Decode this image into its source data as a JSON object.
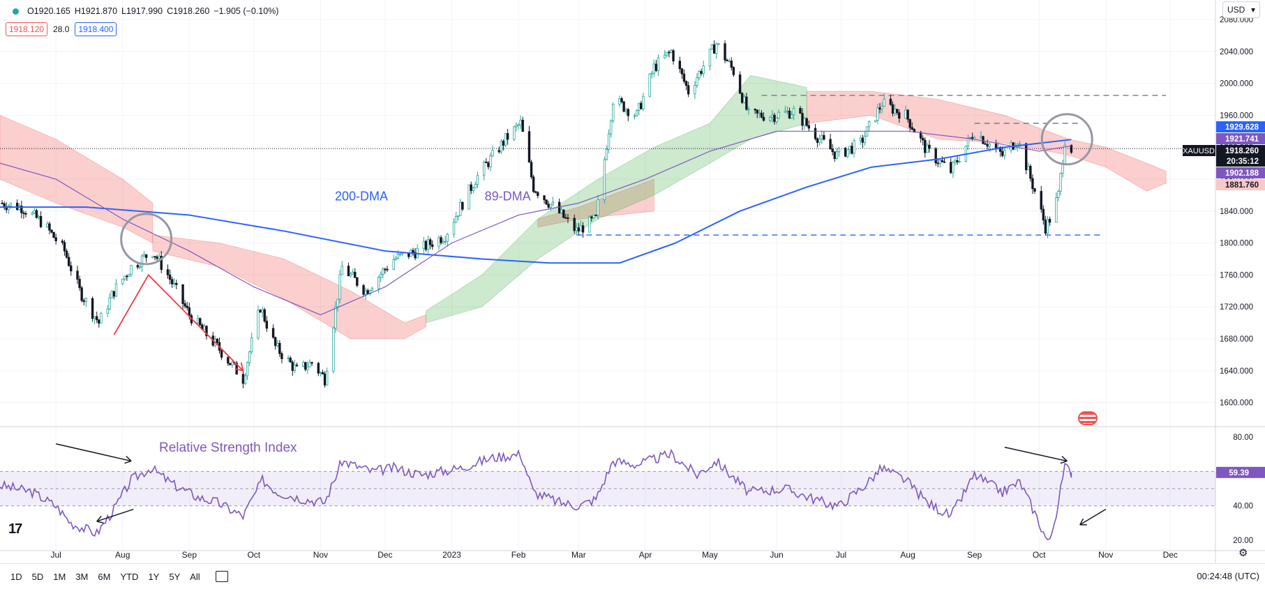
{
  "header": {
    "open": "O1920.165",
    "high": "H1921.870",
    "low": "L1917.990",
    "close": "C1918.260",
    "change": "−1.905 (−0.10%)",
    "bid": "1918.120",
    "spread": "28.0",
    "ask": "1918.400"
  },
  "currency": {
    "label": "USD"
  },
  "toolbar": {
    "timeframes": [
      "1D",
      "5D",
      "1M",
      "3M",
      "6M",
      "YTD",
      "1Y",
      "5Y",
      "All"
    ],
    "clock": "00:24:48 (UTC)"
  },
  "colors": {
    "up": "#26a69a",
    "down": "#131722",
    "dma200": "#2962ff",
    "dma89": "#7e57c2",
    "cloud_bear": "#ef5350",
    "cloud_bull": "#4caf50",
    "rsi": "#7e57c2",
    "annotation_red": "#f23645"
  },
  "chart_data": [
    {
      "type": "candlestick",
      "symbol": "XAUUSD",
      "ylim": [
        1570,
        2080
      ],
      "y_ticks": [
        1600,
        1640,
        1680,
        1720,
        1760,
        1800,
        1840,
        1880,
        1920,
        1960,
        2000,
        2040,
        2080
      ],
      "y_tick_labels": [
        "1600.000",
        "1640.000",
        "1680.000",
        "1720.000",
        "1760.000",
        "1800.000",
        "1840.000",
        "1880.000",
        "1920.000",
        "1960.000",
        "2000.000",
        "2040.000",
        "2080.000"
      ],
      "x_ticks": [
        {
          "label": "Jul",
          "date": "2022-07-01"
        },
        {
          "label": "Aug",
          "date": "2022-08-01"
        },
        {
          "label": "Sep",
          "date": "2022-09-01"
        },
        {
          "label": "Oct",
          "date": "2022-10-01"
        },
        {
          "label": "Nov",
          "date": "2022-11-01"
        },
        {
          "label": "Dec",
          "date": "2022-12-01"
        },
        {
          "label": "2023",
          "date": "2023-01-01"
        },
        {
          "label": "Feb",
          "date": "2023-02-01"
        },
        {
          "label": "Mar",
          "date": "2023-03-01"
        },
        {
          "label": "Apr",
          "date": "2023-04-01"
        },
        {
          "label": "May",
          "date": "2023-05-01"
        },
        {
          "label": "Jun",
          "date": "2023-06-01"
        },
        {
          "label": "Jul",
          "date": "2023-07-01"
        },
        {
          "label": "Aug",
          "date": "2023-08-01"
        },
        {
          "label": "Sep",
          "date": "2023-09-01"
        },
        {
          "label": "Oct",
          "date": "2023-10-01"
        },
        {
          "label": "Nov",
          "date": "2023-11-01"
        },
        {
          "label": "Dec",
          "date": "2023-12-01"
        }
      ],
      "x_range": [
        "2022-06-05",
        "2023-12-22"
      ],
      "price_path": [
        [
          "2022-06-05",
          1850
        ],
        [
          "2022-06-15",
          1845
        ],
        [
          "2022-06-25",
          1825
        ],
        [
          "2022-07-05",
          1790
        ],
        [
          "2022-07-12",
          1740
        ],
        [
          "2022-07-21",
          1700
        ],
        [
          "2022-07-28",
          1740
        ],
        [
          "2022-08-05",
          1770
        ],
        [
          "2022-08-15",
          1790
        ],
        [
          "2022-08-22",
          1760
        ],
        [
          "2022-09-01",
          1710
        ],
        [
          "2022-09-14",
          1670
        ],
        [
          "2022-09-26",
          1630
        ],
        [
          "2022-10-04",
          1720
        ],
        [
          "2022-10-11",
          1670
        ],
        [
          "2022-10-21",
          1640
        ],
        [
          "2022-10-28",
          1650
        ],
        [
          "2022-11-03",
          1630
        ],
        [
          "2022-11-11",
          1770
        ],
        [
          "2022-11-22",
          1740
        ],
        [
          "2022-12-05",
          1780
        ],
        [
          "2022-12-16",
          1790
        ],
        [
          "2022-12-29",
          1810
        ],
        [
          "2023-01-12",
          1880
        ],
        [
          "2023-01-26",
          1930
        ],
        [
          "2023-02-02",
          1950
        ],
        [
          "2023-02-08",
          1870
        ],
        [
          "2023-02-21",
          1835
        ],
        [
          "2023-02-28",
          1815
        ],
        [
          "2023-03-09",
          1830
        ],
        [
          "2023-03-17",
          1980
        ],
        [
          "2023-03-28",
          1960
        ],
        [
          "2023-04-05",
          2020
        ],
        [
          "2023-04-13",
          2040
        ],
        [
          "2023-04-21",
          1990
        ],
        [
          "2023-05-04",
          2050
        ],
        [
          "2023-05-12",
          2015
        ],
        [
          "2023-05-19",
          1960
        ],
        [
          "2023-05-31",
          1960
        ],
        [
          "2023-06-09",
          1965
        ],
        [
          "2023-06-23",
          1925
        ],
        [
          "2023-06-29",
          1910
        ],
        [
          "2023-07-10",
          1925
        ],
        [
          "2023-07-20",
          1975
        ],
        [
          "2023-07-31",
          1960
        ],
        [
          "2023-08-10",
          1915
        ],
        [
          "2023-08-21",
          1890
        ],
        [
          "2023-09-01",
          1940
        ],
        [
          "2023-09-14",
          1910
        ],
        [
          "2023-09-21",
          1930
        ],
        [
          "2023-09-29",
          1865
        ],
        [
          "2023-10-04",
          1820
        ],
        [
          "2023-10-06",
          1830
        ],
        [
          "2023-10-10",
          1860
        ],
        [
          "2023-10-13",
          1930
        ],
        [
          "2023-10-16",
          1918
        ]
      ],
      "dma200": [
        [
          "2022-06-05",
          1845
        ],
        [
          "2022-07-15",
          1845
        ],
        [
          "2022-09-01",
          1835
        ],
        [
          "2022-10-15",
          1815
        ],
        [
          "2022-12-01",
          1790
        ],
        [
          "2023-01-15",
          1780
        ],
        [
          "2023-02-15",
          1775
        ],
        [
          "2023-03-20",
          1775
        ],
        [
          "2023-04-15",
          1800
        ],
        [
          "2023-05-15",
          1840
        ],
        [
          "2023-06-15",
          1870
        ],
        [
          "2023-07-15",
          1895
        ],
        [
          "2023-08-15",
          1905
        ],
        [
          "2023-09-15",
          1920
        ],
        [
          "2023-10-16",
          1929.628
        ]
      ],
      "dma89": [
        [
          "2022-06-05",
          1900
        ],
        [
          "2022-07-01",
          1880
        ],
        [
          "2022-08-01",
          1830
        ],
        [
          "2022-09-01",
          1790
        ],
        [
          "2022-10-01",
          1745
        ],
        [
          "2022-11-01",
          1710
        ],
        [
          "2022-12-01",
          1745
        ],
        [
          "2023-01-01",
          1800
        ],
        [
          "2023-02-01",
          1835
        ],
        [
          "2023-03-01",
          1850
        ],
        [
          "2023-04-01",
          1880
        ],
        [
          "2023-05-01",
          1915
        ],
        [
          "2023-06-01",
          1940
        ],
        [
          "2023-07-01",
          1940
        ],
        [
          "2023-08-01",
          1940
        ],
        [
          "2023-09-01",
          1930
        ],
        [
          "2023-10-01",
          1915
        ],
        [
          "2023-10-16",
          1921.741
        ]
      ],
      "cloud_bear_segments": [
        [
          [
            "2022-06-05",
            1960,
            1880
          ],
          [
            "2022-07-01",
            1930,
            1850
          ],
          [
            "2022-08-01",
            1880,
            1820
          ],
          [
            "2022-08-15",
            1850,
            1800
          ]
        ],
        [
          [
            "2022-08-15",
            1810,
            1790
          ],
          [
            "2022-09-15",
            1800,
            1770
          ],
          [
            "2022-10-15",
            1780,
            1730
          ],
          [
            "2022-11-15",
            1740,
            1680
          ],
          [
            "2022-12-10",
            1700,
            1680
          ],
          [
            "2022-12-20",
            1710,
            1695
          ]
        ],
        [
          [
            "2023-02-10",
            1830,
            1820
          ],
          [
            "2023-03-01",
            1845,
            1830
          ],
          [
            "2023-04-05",
            1880,
            1840
          ]
        ],
        [
          [
            "2023-06-15",
            1990,
            1950
          ],
          [
            "2023-07-15",
            1990,
            1960
          ],
          [
            "2023-08-15",
            1980,
            1930
          ],
          [
            "2023-09-15",
            1960,
            1925
          ],
          [
            "2023-10-15",
            1930,
            1910
          ],
          [
            "2023-11-01",
            1920,
            1895
          ],
          [
            "2023-11-20",
            1900,
            1865
          ],
          [
            "2023-11-29",
            1890,
            1875
          ]
        ]
      ],
      "cloud_bull_segments": [
        [
          [
            "2022-12-20",
            1715,
            1700
          ],
          [
            "2023-01-15",
            1760,
            1720
          ],
          [
            "2023-02-10",
            1830,
            1780
          ],
          [
            "2023-03-10",
            1880,
            1830
          ],
          [
            "2023-04-05",
            1920,
            1860
          ],
          [
            "2023-05-01",
            1950,
            1900
          ],
          [
            "2023-05-20",
            2010,
            1930
          ],
          [
            "2023-06-15",
            1995,
            1950
          ]
        ]
      ],
      "levels": [
        {
          "price": 1810,
          "from": "2023-02-28",
          "to": "2023-10-30",
          "color": "#2962ff"
        },
        {
          "price": 1985,
          "from": "2023-05-25",
          "to": "2023-11-29",
          "color": "#787b86"
        },
        {
          "price": 1950,
          "from": "2023-09-01",
          "to": "2023-10-20",
          "color": "#787b86"
        }
      ],
      "last_price_line": 1918.26,
      "price_labels": [
        {
          "text": "1929.628",
          "price": 1929.628,
          "bg": "#2962ff"
        },
        {
          "text": "1921.741",
          "price": 1921.741,
          "bg": "#7e57c2"
        },
        {
          "text": "XAUUSD",
          "price": 1918.26,
          "bg": "#131722",
          "side": "left"
        },
        {
          "text": "1918.260",
          "price": 1918.26,
          "bg": "#131722"
        },
        {
          "text": "20:35:12",
          "price": 1918.26,
          "bg": "#131722",
          "sub": true
        },
        {
          "text": "1902.188",
          "price": 1902.188,
          "bg": "#7e57c2"
        },
        {
          "text": "1881.760",
          "price": 1881.76,
          "bg": "#f8c9c6",
          "fg": "#131722"
        }
      ],
      "annotations": [
        {
          "text": "200-DMA",
          "date": "2022-11-20",
          "price": 1850,
          "color": "#2962ff"
        },
        {
          "text": "89-DMA",
          "date": "2023-01-27",
          "price": 1850,
          "color": "#7e57c2"
        }
      ],
      "circles": [
        {
          "date": "2022-08-12",
          "price": 1805
        },
        {
          "date": "2023-10-14",
          "price": 1930
        }
      ],
      "arrows": [
        {
          "from": [
            "2022-07-28",
            1685
          ],
          "via": [
            "2022-08-13",
            1760
          ],
          "to": [
            "2022-09-26",
            1640
          ]
        }
      ]
    },
    {
      "type": "line",
      "name": "Relative Strength Index",
      "ylim": [
        14,
        86
      ],
      "y_ticks": [
        20,
        40,
        60,
        80
      ],
      "y_tick_labels": [
        "20.00",
        "40.00",
        "60.00",
        "80.00"
      ],
      "band": [
        40,
        60
      ],
      "mid": 50,
      "last_value": "59.39",
      "values": [
        [
          "2022-06-05",
          52
        ],
        [
          "2022-06-20",
          48
        ],
        [
          "2022-07-01",
          40
        ],
        [
          "2022-07-08",
          30
        ],
        [
          "2022-07-20",
          24
        ],
        [
          "2022-07-28",
          38
        ],
        [
          "2022-08-05",
          55
        ],
        [
          "2022-08-14",
          62
        ],
        [
          "2022-08-25",
          52
        ],
        [
          "2022-09-05",
          45
        ],
        [
          "2022-09-14",
          42
        ],
        [
          "2022-09-26",
          34
        ],
        [
          "2022-10-05",
          55
        ],
        [
          "2022-10-12",
          48
        ],
        [
          "2022-10-24",
          44
        ],
        [
          "2022-11-03",
          42
        ],
        [
          "2022-11-11",
          66
        ],
        [
          "2022-11-25",
          60
        ],
        [
          "2022-12-05",
          62
        ],
        [
          "2022-12-18",
          58
        ],
        [
          "2023-01-05",
          62
        ],
        [
          "2023-01-20",
          68
        ],
        [
          "2023-02-02",
          70
        ],
        [
          "2023-02-08",
          48
        ],
        [
          "2023-02-20",
          42
        ],
        [
          "2023-03-01",
          40
        ],
        [
          "2023-03-09",
          44
        ],
        [
          "2023-03-17",
          66
        ],
        [
          "2023-03-28",
          64
        ],
        [
          "2023-04-13",
          70
        ],
        [
          "2023-04-25",
          58
        ],
        [
          "2023-05-04",
          66
        ],
        [
          "2023-05-19",
          48
        ],
        [
          "2023-06-05",
          50
        ],
        [
          "2023-06-23",
          42
        ],
        [
          "2023-06-30",
          40
        ],
        [
          "2023-07-12",
          52
        ],
        [
          "2023-07-20",
          62
        ],
        [
          "2023-07-31",
          55
        ],
        [
          "2023-08-10",
          42
        ],
        [
          "2023-08-21",
          34
        ],
        [
          "2023-09-01",
          58
        ],
        [
          "2023-09-14",
          48
        ],
        [
          "2023-09-22",
          54
        ],
        [
          "2023-09-29",
          36
        ],
        [
          "2023-10-04",
          22
        ],
        [
          "2023-10-06",
          19
        ],
        [
          "2023-10-10",
          42
        ],
        [
          "2023-10-13",
          63
        ],
        [
          "2023-10-16",
          59.39
        ]
      ]
    }
  ]
}
